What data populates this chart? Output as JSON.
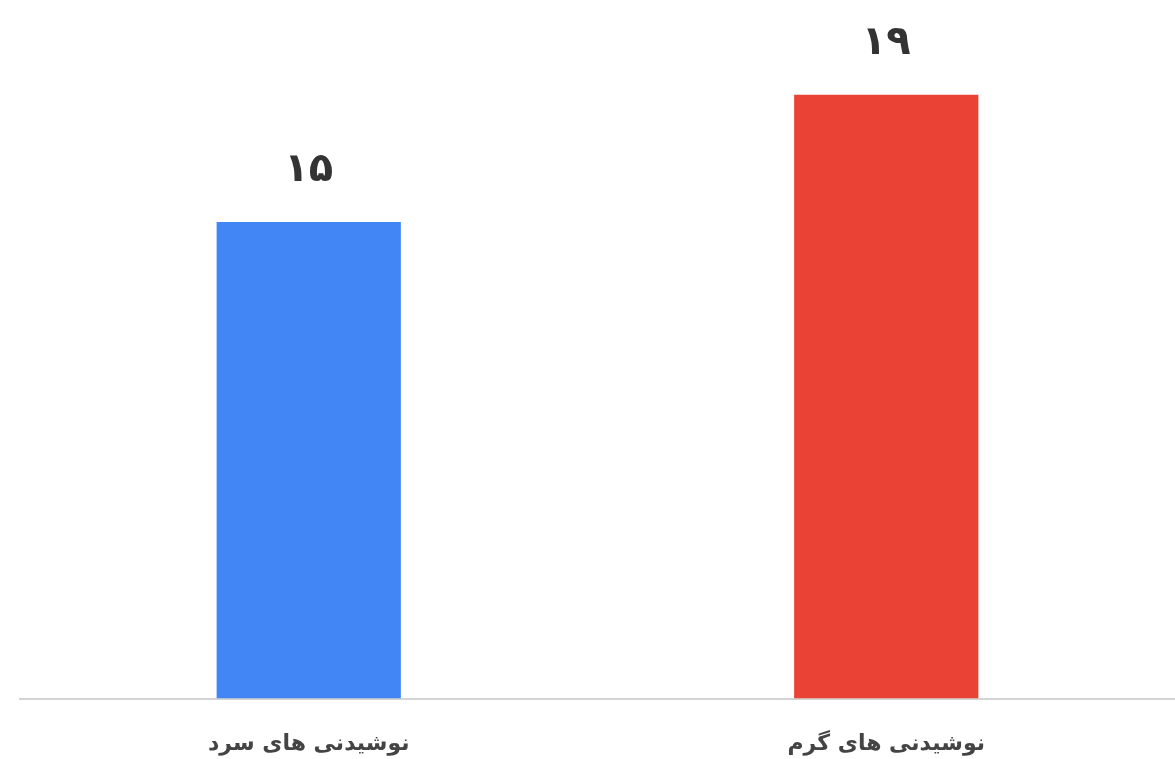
{
  "chart_data": {
    "type": "bar",
    "categories": [
      "نوشیدنی های سرد",
      "نوشیدنی های گرم"
    ],
    "values": [
      15,
      19
    ],
    "colors": [
      "#4285f4",
      "#ea4335"
    ],
    "value_labels": [
      "۱۵",
      "۱۹"
    ],
    "tick_labels": "x"
  }
}
